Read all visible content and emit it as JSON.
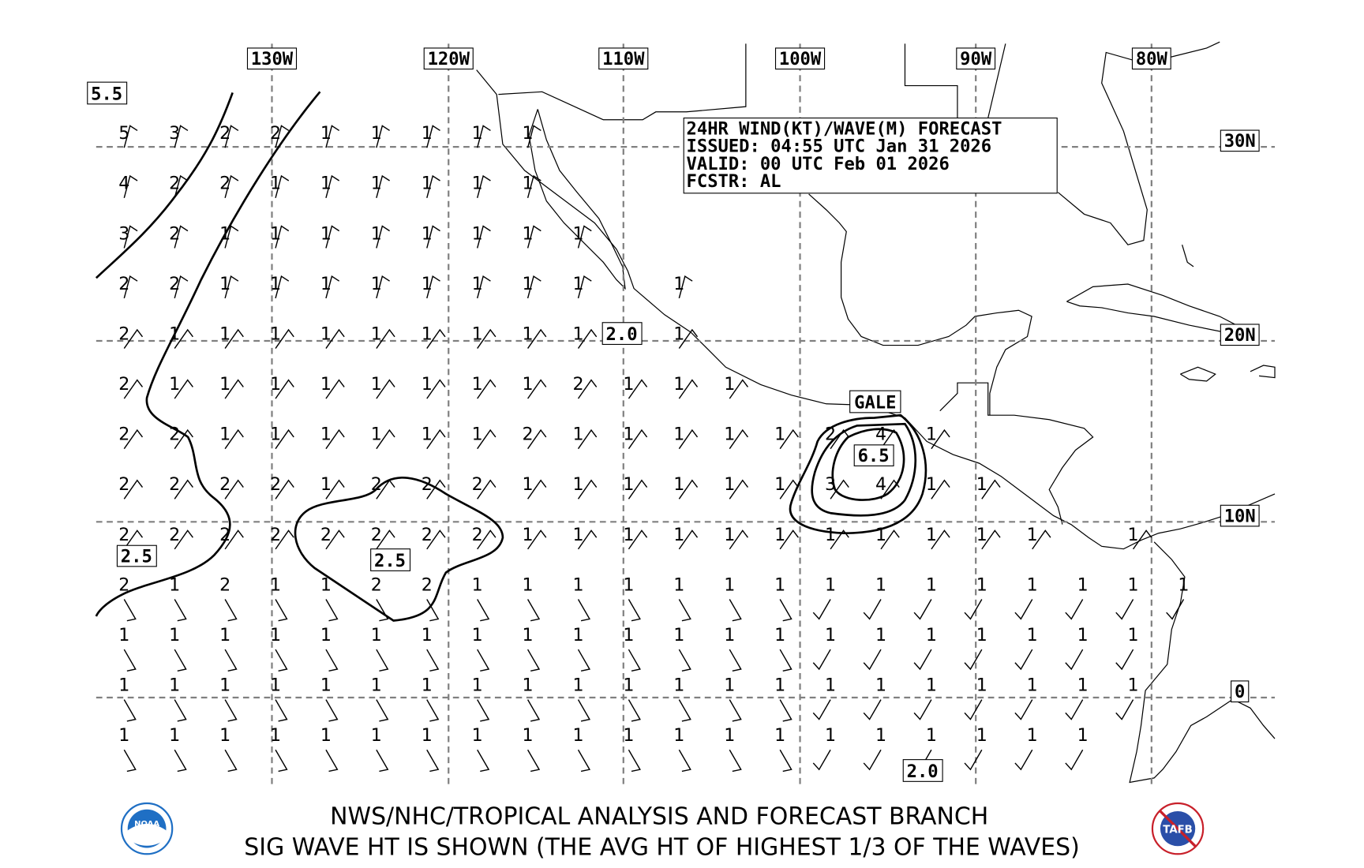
{
  "info_box": {
    "title": "24HR WIND(KT)/WAVE(M) FORECAST",
    "issued": "ISSUED: 04:55 UTC Jan 31 2026",
    "valid": "VALID: 00 UTC Feb 01 2026",
    "forecaster": "FCSTR: AL"
  },
  "longitude_labels": [
    "130W",
    "120W",
    "110W",
    "100W",
    "90W",
    "80W"
  ],
  "latitude_labels": [
    "30N",
    "20N",
    "10N",
    "0"
  ],
  "contour_labels": {
    "northwest": "5.5",
    "west": "2.5",
    "central": "2.5",
    "offshore_baja": "2.0",
    "south": "2.0",
    "tehuantepec_max": "6.5",
    "warning": "GALE"
  },
  "wave_grid": [
    [
      "5",
      "3",
      "2",
      "2",
      "1",
      "1",
      "1",
      "1",
      "1",
      "",
      "",
      "",
      "",
      "",
      "",
      "",
      "",
      "",
      "",
      "",
      "",
      ""
    ],
    [
      "4",
      "2",
      "2",
      "1",
      "1",
      "1",
      "1",
      "1",
      "1",
      "",
      "",
      "",
      "",
      "",
      "",
      "",
      "",
      "",
      "",
      "",
      "",
      ""
    ],
    [
      "3",
      "2",
      "1",
      "1",
      "1",
      "1",
      "1",
      "1",
      "1",
      "1",
      "",
      "",
      "",
      "",
      "",
      "",
      "",
      "",
      "",
      "",
      "",
      ""
    ],
    [
      "2",
      "2",
      "1",
      "1",
      "1",
      "1",
      "1",
      "1",
      "1",
      "1",
      "",
      "1",
      "",
      "",
      "",
      "",
      "",
      "",
      "",
      "",
      "",
      ""
    ],
    [
      "2",
      "1",
      "1",
      "1",
      "1",
      "1",
      "1",
      "1",
      "1",
      "1",
      "",
      "1",
      "",
      "",
      "",
      "",
      "",
      "",
      "",
      "",
      "",
      ""
    ],
    [
      "2",
      "1",
      "1",
      "1",
      "1",
      "1",
      "1",
      "1",
      "1",
      "2",
      "1",
      "1",
      "1",
      "",
      "",
      "",
      "",
      "",
      "",
      "",
      "",
      ""
    ],
    [
      "2",
      "2",
      "1",
      "1",
      "1",
      "1",
      "1",
      "1",
      "2",
      "1",
      "1",
      "1",
      "1",
      "1",
      "2",
      "4",
      "1",
      "",
      "",
      "",
      "",
      ""
    ],
    [
      "2",
      "2",
      "2",
      "2",
      "1",
      "2",
      "2",
      "2",
      "1",
      "1",
      "1",
      "1",
      "1",
      "1",
      "3",
      "4",
      "1",
      "1",
      "",
      "",
      "",
      ""
    ],
    [
      "2",
      "2",
      "2",
      "2",
      "2",
      "2",
      "2",
      "2",
      "1",
      "1",
      "1",
      "1",
      "1",
      "1",
      "1",
      "1",
      "1",
      "1",
      "1",
      "",
      "1",
      ""
    ],
    [
      "2",
      "1",
      "2",
      "1",
      "1",
      "2",
      "2",
      "1",
      "1",
      "1",
      "1",
      "1",
      "1",
      "1",
      "1",
      "1",
      "1",
      "1",
      "1",
      "1",
      "1",
      "1"
    ],
    [
      "1",
      "1",
      "1",
      "1",
      "1",
      "1",
      "1",
      "1",
      "1",
      "1",
      "1",
      "1",
      "1",
      "1",
      "1",
      "1",
      "1",
      "1",
      "1",
      "1",
      "1",
      ""
    ],
    [
      "1",
      "1",
      "1",
      "1",
      "1",
      "1",
      "1",
      "1",
      "1",
      "1",
      "1",
      "1",
      "1",
      "1",
      "1",
      "1",
      "1",
      "1",
      "1",
      "1",
      "1",
      ""
    ],
    [
      "1",
      "1",
      "1",
      "1",
      "1",
      "1",
      "1",
      "1",
      "1",
      "1",
      "1",
      "1",
      "1",
      "1",
      "1",
      "1",
      "1",
      "1",
      "1",
      "1",
      "",
      ""
    ]
  ],
  "footer": {
    "line1": "NWS/NHC/TROPICAL ANALYSIS AND FORECAST BRANCH",
    "line2": "SIG WAVE HT IS SHOWN (THE AVG HT OF HIGHEST 1/3 OF THE WAVES)",
    "noaa_logo": "NOAA",
    "tafb_logo": "TAFB"
  },
  "colors": {
    "grid": "#808080",
    "ink": "#000000",
    "noaa_blue": "#1f6fc4",
    "tafb_red": "#c8202a"
  }
}
